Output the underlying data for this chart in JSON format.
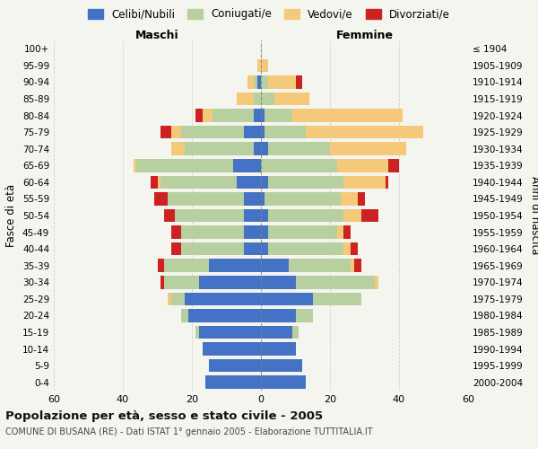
{
  "age_groups": [
    "0-4",
    "5-9",
    "10-14",
    "15-19",
    "20-24",
    "25-29",
    "30-34",
    "35-39",
    "40-44",
    "45-49",
    "50-54",
    "55-59",
    "60-64",
    "65-69",
    "70-74",
    "75-79",
    "80-84",
    "85-89",
    "90-94",
    "95-99",
    "100+"
  ],
  "birth_years": [
    "2000-2004",
    "1995-1999",
    "1990-1994",
    "1985-1989",
    "1980-1984",
    "1975-1979",
    "1970-1974",
    "1965-1969",
    "1960-1964",
    "1955-1959",
    "1950-1954",
    "1945-1949",
    "1940-1944",
    "1935-1939",
    "1930-1934",
    "1925-1929",
    "1920-1924",
    "1915-1919",
    "1910-1914",
    "1905-1909",
    "≤ 1904"
  ],
  "males": {
    "celibe": [
      16,
      15,
      17,
      18,
      21,
      22,
      18,
      15,
      5,
      5,
      5,
      5,
      7,
      8,
      2,
      5,
      2,
      0,
      1,
      0,
      0
    ],
    "coniugato": [
      0,
      0,
      0,
      1,
      2,
      4,
      10,
      13,
      18,
      18,
      20,
      22,
      22,
      28,
      20,
      18,
      12,
      2,
      1,
      0,
      0
    ],
    "vedovo": [
      0,
      0,
      0,
      0,
      0,
      1,
      0,
      0,
      0,
      0,
      0,
      0,
      1,
      1,
      4,
      3,
      3,
      5,
      2,
      1,
      0
    ],
    "divorziato": [
      0,
      0,
      0,
      0,
      0,
      0,
      1,
      2,
      3,
      3,
      3,
      4,
      2,
      0,
      0,
      3,
      2,
      0,
      0,
      0,
      0
    ]
  },
  "females": {
    "nubile": [
      13,
      12,
      10,
      9,
      10,
      15,
      10,
      8,
      2,
      2,
      2,
      1,
      2,
      0,
      2,
      1,
      1,
      0,
      0,
      0,
      0
    ],
    "coniugata": [
      0,
      0,
      0,
      2,
      5,
      14,
      23,
      18,
      22,
      20,
      22,
      22,
      22,
      22,
      18,
      12,
      8,
      4,
      2,
      0,
      0
    ],
    "vedova": [
      0,
      0,
      0,
      0,
      0,
      0,
      1,
      1,
      2,
      2,
      5,
      5,
      12,
      15,
      22,
      34,
      32,
      10,
      8,
      2,
      0
    ],
    "divorziata": [
      0,
      0,
      0,
      0,
      0,
      0,
      0,
      2,
      2,
      2,
      5,
      2,
      1,
      3,
      0,
      0,
      0,
      0,
      2,
      0,
      0
    ]
  },
  "colors": {
    "celibe_nubile": "#4472c4",
    "coniugato_a": "#b8cfa0",
    "vedovo_a": "#f5c97a",
    "divorziato_a": "#cc2222"
  },
  "xlim": 60,
  "title": "Popolazione per età, sesso e stato civile - 2005",
  "subtitle": "COMUNE DI BUSANA (RE) - Dati ISTAT 1° gennaio 2005 - Elaborazione TUTTITALIA.IT",
  "ylabel_left": "Fasce di età",
  "ylabel_right": "Anni di nascita",
  "xlabel_left": "Maschi",
  "xlabel_right": "Femmine",
  "legend_labels": [
    "Celibi/Nubili",
    "Coniugati/e",
    "Vedovi/e",
    "Divorziati/e"
  ],
  "bg_color": "#f5f5f0",
  "grid_color": "#cccccc"
}
